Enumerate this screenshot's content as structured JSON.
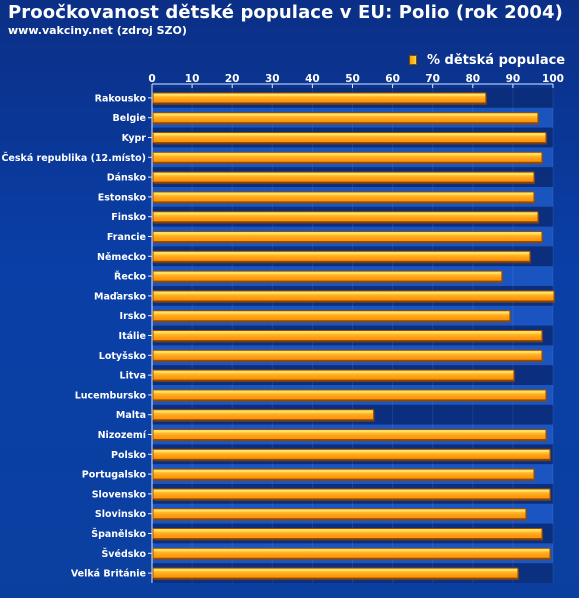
{
  "header": {
    "title": "Proočkovanost dětské populace v EU: Polio (rok 2004)",
    "subtitle": "www.vakciny.net (zdroj SZO)"
  },
  "chart_data": {
    "type": "bar",
    "orientation": "horizontal",
    "title": "Proočkovanost dětské populace v EU: Polio (rok 2004)",
    "subtitle": "www.vakciny.net (zdroj SZO)",
    "categories": [
      "Rakousko",
      "Belgie",
      "Kypr",
      "Česká republika (12.místo)",
      "Dánsko",
      "Estonsko",
      "Finsko",
      "Francie",
      "Německo",
      "Řecko",
      "Maďarsko",
      "Irsko",
      "Itálie",
      "Lotyšsko",
      "Litva",
      "Lucembursko",
      "Malta",
      "Nizozemí",
      "Polsko",
      "Portugalsko",
      "Slovensko",
      "Slovinsko",
      "Španělsko",
      "Švédsko",
      "Velká Británie"
    ],
    "series": [
      {
        "name": "% dětská populace",
        "values": [
          83,
          96,
          98,
          97,
          95,
          95,
          96,
          97,
          94,
          87,
          100,
          89,
          97,
          97,
          90,
          98,
          55,
          98,
          99,
          95,
          99,
          93,
          97,
          99,
          91
        ]
      }
    ],
    "x_ticks": [
      "0",
      "10",
      "20",
      "30",
      "40",
      "50",
      "60",
      "70",
      "80",
      "90",
      "100"
    ],
    "xlim": [
      0,
      100
    ],
    "legend": "top-right",
    "grid": true,
    "colors": {
      "background_top": "#0b2f86",
      "background_bottom": "#0b3f9f",
      "band_dark": "#0a2c79",
      "band_light": "#1b56c4",
      "bar_top": "#ffb12b",
      "bar_bottom": "#ff8f00",
      "bar_highlight": "#ffe36c",
      "bar_edge": "#9a4d00",
      "axis": "#d9e7ff",
      "text": "#ffffff"
    }
  }
}
